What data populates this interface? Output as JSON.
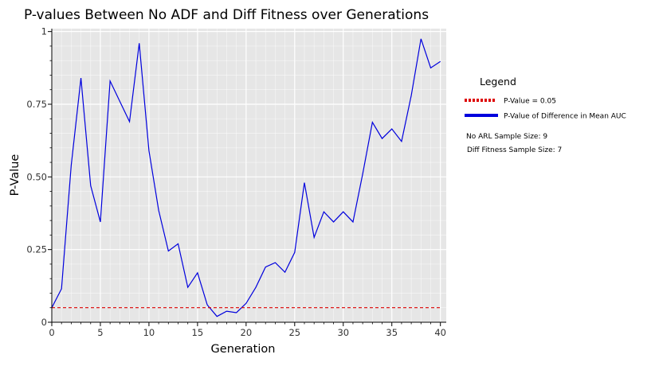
{
  "chart_data": {
    "type": "line",
    "title": "P-values Between No ADF and Diff Fitness over Generations",
    "xlabel": "Generation",
    "ylabel": "P-Value",
    "xlim": [
      0,
      40.6
    ],
    "ylim": [
      0,
      1.01
    ],
    "xticks": [
      0,
      5,
      10,
      15,
      20,
      25,
      30,
      35,
      40
    ],
    "yticks": [
      0,
      0.25,
      0.5,
      0.75,
      1
    ],
    "ytick_labels": [
      "0",
      "0.25",
      "0.50",
      "0.75",
      "1"
    ],
    "grid": true,
    "legend_position": "right",
    "series": [
      {
        "name": "P-Value of Difference in Mean AUC",
        "color": "#0000dd",
        "style": "solid",
        "x": [
          0,
          1,
          2,
          3,
          4,
          5,
          6,
          7,
          8,
          9,
          10,
          11,
          12,
          13,
          14,
          15,
          16,
          17,
          18,
          19,
          20,
          21,
          22,
          23,
          24,
          25,
          26,
          27,
          28,
          29,
          30,
          31,
          32,
          33,
          34,
          35,
          36,
          37,
          38,
          39,
          40
        ],
        "y": [
          0.05,
          0.115,
          0.54,
          0.84,
          0.47,
          0.345,
          0.83,
          0.76,
          0.69,
          0.96,
          0.59,
          0.385,
          0.245,
          0.27,
          0.12,
          0.17,
          0.06,
          0.02,
          0.038,
          0.033,
          0.065,
          0.12,
          0.19,
          0.205,
          0.172,
          0.24,
          0.48,
          0.292,
          0.38,
          0.345,
          0.38,
          0.345,
          0.51,
          0.688,
          0.632,
          0.665,
          0.622,
          0.78,
          0.975,
          0.875,
          0.897
        ]
      },
      {
        "name": "P-Value = 0.05",
        "color": "#dd0000",
        "style": "dotted",
        "x": [
          0,
          40
        ],
        "y": [
          0.05,
          0.05
        ]
      }
    ]
  },
  "legend": {
    "title": "Legend",
    "items": [
      {
        "label": "P-Value = 0.05",
        "color": "#dd0000",
        "style": "dotted"
      },
      {
        "label": "P-Value of Difference in Mean AUC",
        "color": "#0000dd",
        "style": "solid"
      }
    ],
    "notes": [
      "No ARL Sample Size: 9",
      "Diff Fitness Sample Size:  7"
    ]
  }
}
